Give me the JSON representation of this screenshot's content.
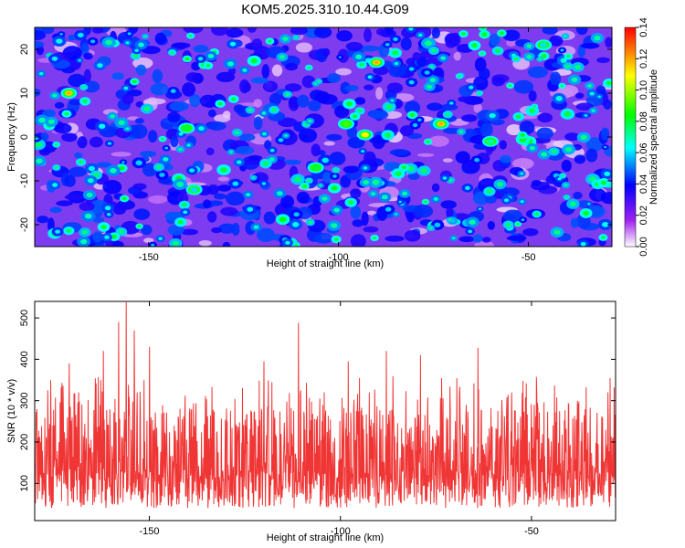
{
  "chart_data": [
    {
      "type": "heatmap",
      "title": "KOM5.2025.310.10.44.G09",
      "xlabel": "Height of straight line (km)",
      "ylabel": "Frequency (Hz)",
      "xlim": [
        -180,
        -28
      ],
      "ylim": [
        -25,
        25
      ],
      "xticks": [
        -150,
        -100,
        -50
      ],
      "yticks": [
        -20,
        -10,
        0,
        10,
        20
      ],
      "colorbar": {
        "label": "Normalized spectral amplitude",
        "range": [
          0,
          0.14
        ],
        "ticks": [
          "0.00",
          "0.02",
          "0.04",
          "0.06",
          "0.08",
          "0.10",
          "0.12",
          "0.14"
        ],
        "colors": [
          "#ffffff",
          "#a020f0",
          "#0000ff",
          "#00ffff",
          "#00ff00",
          "#ffff00",
          "#ff0000"
        ]
      },
      "peaks": [
        {
          "x": -171,
          "y": 10,
          "value": 0.12
        },
        {
          "x": -90,
          "y": 17,
          "value": 0.12
        },
        {
          "x": -73,
          "y": 3,
          "value": 0.12
        },
        {
          "x": -93,
          "y": 0.5,
          "value": 0.11
        },
        {
          "x": -98,
          "y": 3,
          "value": 0.09
        },
        {
          "x": -140,
          "y": 2,
          "value": 0.08
        },
        {
          "x": -106,
          "y": -7,
          "value": 0.08
        },
        {
          "x": -138,
          "y": -12,
          "value": 0.06
        },
        {
          "x": -60,
          "y": -1,
          "value": 0.07
        },
        {
          "x": -46,
          "y": 21,
          "value": 0.06
        }
      ],
      "background_level": 0.03
    },
    {
      "type": "line",
      "title": "",
      "xlabel": "Height of straight line (km)",
      "ylabel": "SNR (10 * v/v)",
      "xlim": [
        -180,
        -28
      ],
      "ylim": [
        10,
        540
      ],
      "xticks": [
        -150,
        -100,
        -50
      ],
      "yticks": [
        100,
        200,
        300,
        400,
        500
      ],
      "series": [
        {
          "name": "SNR",
          "color": "#f03535",
          "typical_low": 60,
          "typical_high": 260,
          "peak_max": 538
        }
      ],
      "spikes": [
        {
          "x": -156,
          "y": 538
        },
        {
          "x": -154,
          "y": 470
        },
        {
          "x": -158,
          "y": 490
        },
        {
          "x": -162,
          "y": 420
        },
        {
          "x": -171,
          "y": 390
        },
        {
          "x": -150,
          "y": 430
        },
        {
          "x": -120,
          "y": 395
        },
        {
          "x": -111,
          "y": 488
        },
        {
          "x": -98,
          "y": 395
        },
        {
          "x": -88,
          "y": 420
        },
        {
          "x": -79,
          "y": 410
        },
        {
          "x": -64,
          "y": 428
        },
        {
          "x": -38,
          "y": 300
        },
        {
          "x": -30,
          "y": 320
        }
      ]
    }
  ]
}
